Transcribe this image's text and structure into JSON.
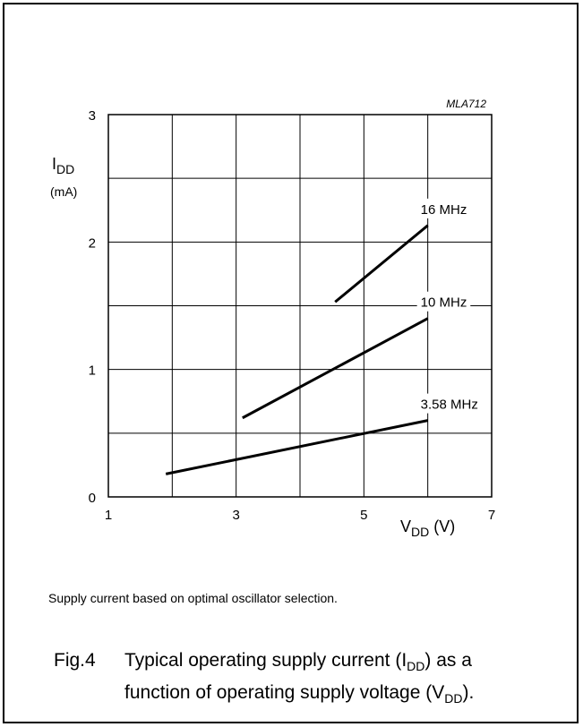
{
  "chart_data": {
    "type": "line",
    "code": "MLA712",
    "xlabel": {
      "main": "V",
      "sub": "DD",
      "unit": " (V)"
    },
    "ylabel": {
      "main": "I",
      "sub": "DD",
      "unit": "(mA)"
    },
    "xlim": [
      1,
      7
    ],
    "ylim": [
      0,
      3
    ],
    "xticks": [
      1,
      3,
      5,
      7
    ],
    "yticks": [
      0,
      1,
      2,
      3
    ],
    "grid": true,
    "series": [
      {
        "name": "16 MHz",
        "x": [
          4.55,
          6.0
        ],
        "y": [
          1.53,
          2.13
        ]
      },
      {
        "name": "10 MHz",
        "x": [
          3.1,
          6.0
        ],
        "y": [
          0.62,
          1.4
        ]
      },
      {
        "name": "3.58 MHz",
        "x": [
          1.9,
          6.0
        ],
        "y": [
          0.18,
          0.6
        ]
      }
    ]
  },
  "note": "Supply current based on optimal oscillator selection.",
  "caption": {
    "label": "Fig.4",
    "line1_a": "Typical operating supply current (I",
    "line1_sub": "DD",
    "line1_b": ") as a",
    "line2_a": "function of operating supply voltage (V",
    "line2_sub": "DD",
    "line2_b": ")."
  }
}
